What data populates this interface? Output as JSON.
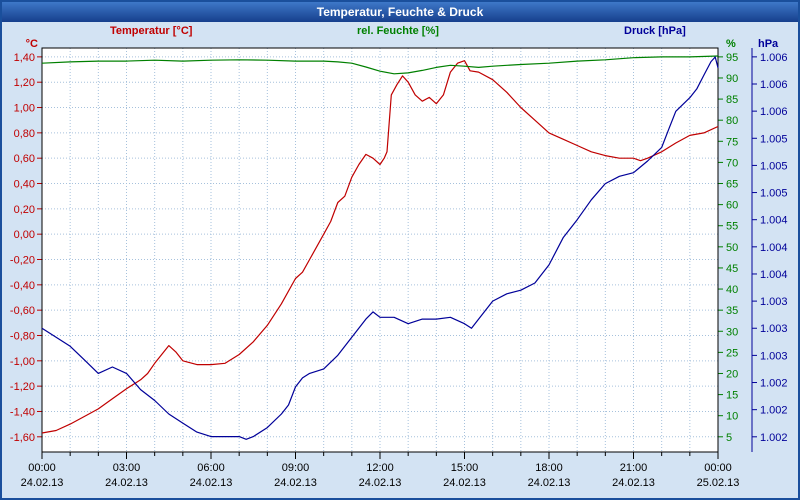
{
  "window": {
    "title": "Temperatur, Feuchte & Druck"
  },
  "legend": {
    "temperature": "Temperatur [°C]",
    "humidity": "rel. Feuchte [%]",
    "pressure": "Druck [hPa]"
  },
  "colors": {
    "temperature": "#c00000",
    "humidity": "#008000",
    "pressure": "#000099",
    "grid": "#a6c1dc",
    "frame": "#000000",
    "time_text": "#000000",
    "titlebar": "#1a4f9c"
  },
  "chart_data": {
    "type": "line",
    "title": "Temperatur, Feuchte & Druck",
    "grid": "dotted, hourly vertical and per temperature tick horizontal",
    "legend_position": "top",
    "x_axis": {
      "range_hours": [
        0,
        24
      ],
      "minor_step_hours": 1,
      "ticks": [
        {
          "hour": 0,
          "time": "00:00",
          "date": "24.02.13"
        },
        {
          "hour": 3,
          "time": "03:00",
          "date": "24.02.13"
        },
        {
          "hour": 6,
          "time": "06:00",
          "date": "24.02.13"
        },
        {
          "hour": 9,
          "time": "09:00",
          "date": "24.02.13"
        },
        {
          "hour": 12,
          "time": "12:00",
          "date": "24.02.13"
        },
        {
          "hour": 15,
          "time": "15:00",
          "date": "24.02.13"
        },
        {
          "hour": 18,
          "time": "18:00",
          "date": "24.02.13"
        },
        {
          "hour": 21,
          "time": "21:00",
          "date": "24.02.13"
        },
        {
          "hour": 24,
          "time": "00:00",
          "date": "25.02.13"
        }
      ]
    },
    "axes": {
      "temperature": {
        "unit": "°C",
        "side": "left",
        "range": [
          -1.72,
          1.47
        ],
        "ticks": [
          {
            "label": "1,40",
            "value": 1.4
          },
          {
            "label": "1,20",
            "value": 1.2
          },
          {
            "label": "1,00",
            "value": 1.0
          },
          {
            "label": "0,80",
            "value": 0.8
          },
          {
            "label": "0,60",
            "value": 0.6
          },
          {
            "label": "0,40",
            "value": 0.4
          },
          {
            "label": "0,20",
            "value": 0.2
          },
          {
            "label": "0,00",
            "value": 0.0
          },
          {
            "label": "-0,20",
            "value": -0.2
          },
          {
            "label": "-0,40",
            "value": -0.4
          },
          {
            "label": "-0,60",
            "value": -0.6
          },
          {
            "label": "-0,80",
            "value": -0.8
          },
          {
            "label": "-1,00",
            "value": -1.0
          },
          {
            "label": "-1,20",
            "value": -1.2
          },
          {
            "label": "-1,40",
            "value": -1.4
          },
          {
            "label": "-1,60",
            "value": -1.6
          }
        ]
      },
      "humidity": {
        "unit": "%",
        "side": "right-inner",
        "range": [
          1.4,
          97.1
        ],
        "ticks": [
          {
            "label": "95",
            "value": 95
          },
          {
            "label": "90",
            "value": 90
          },
          {
            "label": "85",
            "value": 85
          },
          {
            "label": "80",
            "value": 80
          },
          {
            "label": "75",
            "value": 75
          },
          {
            "label": "70",
            "value": 70
          },
          {
            "label": "65",
            "value": 65
          },
          {
            "label": "60",
            "value": 60
          },
          {
            "label": "55",
            "value": 55
          },
          {
            "label": "50",
            "value": 50
          },
          {
            "label": "45",
            "value": 45
          },
          {
            "label": "40",
            "value": 40
          },
          {
            "label": "35",
            "value": 35
          },
          {
            "label": "30",
            "value": 30
          },
          {
            "label": "25",
            "value": 25
          },
          {
            "label": "20",
            "value": 20
          },
          {
            "label": "15",
            "value": 15
          },
          {
            "label": "10",
            "value": 10
          },
          {
            "label": "5",
            "value": 5
          }
        ]
      },
      "pressure": {
        "unit": "hPa",
        "side": "right-outer",
        "range": [
          1002.03,
          1006.5
        ],
        "tick_labels": [
          "1.006",
          "1.006",
          "1.006",
          "1.005",
          "1.005",
          "1.005",
          "1.004",
          "1.004",
          "1.004",
          "1.003",
          "1.003",
          "1.003",
          "1.002",
          "1.002",
          "1.002"
        ]
      }
    },
    "series": [
      {
        "name": "Temperatur",
        "unit": "°C",
        "axis": "temperature",
        "color": "#c00000",
        "points": [
          [
            0,
            -1.57
          ],
          [
            0.5,
            -1.55
          ],
          [
            1,
            -1.5
          ],
          [
            1.5,
            -1.44
          ],
          [
            2,
            -1.38
          ],
          [
            2.5,
            -1.3
          ],
          [
            3,
            -1.22
          ],
          [
            3.5,
            -1.15
          ],
          [
            3.75,
            -1.1
          ],
          [
            4,
            -1.02
          ],
          [
            4.25,
            -0.95
          ],
          [
            4.5,
            -0.88
          ],
          [
            4.75,
            -0.93
          ],
          [
            5,
            -1.0
          ],
          [
            5.5,
            -1.03
          ],
          [
            6,
            -1.03
          ],
          [
            6.5,
            -1.02
          ],
          [
            7,
            -0.95
          ],
          [
            7.5,
            -0.85
          ],
          [
            8,
            -0.72
          ],
          [
            8.5,
            -0.55
          ],
          [
            9,
            -0.35
          ],
          [
            9.25,
            -0.3
          ],
          [
            9.5,
            -0.2
          ],
          [
            10,
            0.0
          ],
          [
            10.25,
            0.1
          ],
          [
            10.5,
            0.25
          ],
          [
            10.75,
            0.3
          ],
          [
            11,
            0.45
          ],
          [
            11.25,
            0.55
          ],
          [
            11.5,
            0.63
          ],
          [
            11.75,
            0.6
          ],
          [
            12,
            0.55
          ],
          [
            12.15,
            0.6
          ],
          [
            12.25,
            0.65
          ],
          [
            12.4,
            1.1
          ],
          [
            12.6,
            1.18
          ],
          [
            12.8,
            1.25
          ],
          [
            13,
            1.2
          ],
          [
            13.25,
            1.1
          ],
          [
            13.5,
            1.05
          ],
          [
            13.75,
            1.08
          ],
          [
            14,
            1.03
          ],
          [
            14.25,
            1.1
          ],
          [
            14.5,
            1.28
          ],
          [
            14.75,
            1.35
          ],
          [
            15,
            1.37
          ],
          [
            15.2,
            1.29
          ],
          [
            15.5,
            1.28
          ],
          [
            16,
            1.22
          ],
          [
            16.5,
            1.12
          ],
          [
            17,
            1.0
          ],
          [
            17.5,
            0.9
          ],
          [
            18,
            0.8
          ],
          [
            18.5,
            0.75
          ],
          [
            19,
            0.7
          ],
          [
            19.5,
            0.65
          ],
          [
            20,
            0.62
          ],
          [
            20.5,
            0.6
          ],
          [
            21,
            0.6
          ],
          [
            21.25,
            0.58
          ],
          [
            21.5,
            0.6
          ],
          [
            22,
            0.65
          ],
          [
            22.5,
            0.72
          ],
          [
            23,
            0.78
          ],
          [
            23.5,
            0.8
          ],
          [
            24,
            0.85
          ]
        ]
      },
      {
        "name": "rel. Feuchte",
        "unit": "%",
        "axis": "humidity",
        "color": "#008000",
        "points": [
          [
            0,
            93.5
          ],
          [
            1,
            93.8
          ],
          [
            2,
            94.0
          ],
          [
            3,
            94.0
          ],
          [
            4,
            94.2
          ],
          [
            5,
            94.0
          ],
          [
            6,
            94.2
          ],
          [
            7,
            94.3
          ],
          [
            8,
            94.2
          ],
          [
            9,
            94.0
          ],
          [
            10,
            94.0
          ],
          [
            10.5,
            93.8
          ],
          [
            11,
            93.5
          ],
          [
            11.5,
            92.6
          ],
          [
            12,
            91.6
          ],
          [
            12.5,
            91.0
          ],
          [
            13,
            91.2
          ],
          [
            13.5,
            91.8
          ],
          [
            14,
            92.5
          ],
          [
            14.5,
            93.0
          ],
          [
            15,
            92.8
          ],
          [
            15.5,
            92.5
          ],
          [
            16,
            92.8
          ],
          [
            16.5,
            93.0
          ],
          [
            17,
            93.2
          ],
          [
            18,
            93.5
          ],
          [
            19,
            94.0
          ],
          [
            20,
            94.3
          ],
          [
            21,
            94.8
          ],
          [
            22,
            95.0
          ],
          [
            23,
            95.0
          ],
          [
            24,
            95.2
          ]
        ]
      },
      {
        "name": "Druck",
        "unit": "hPa",
        "axis": "pressure",
        "color": "#000099",
        "points": [
          [
            0,
            1003.4
          ],
          [
            0.5,
            1003.3
          ],
          [
            1,
            1003.2
          ],
          [
            1.5,
            1003.05
          ],
          [
            2,
            1002.9
          ],
          [
            2.5,
            1002.97
          ],
          [
            3,
            1002.9
          ],
          [
            3.5,
            1002.72
          ],
          [
            4,
            1002.6
          ],
          [
            4.5,
            1002.45
          ],
          [
            5,
            1002.35
          ],
          [
            5.5,
            1002.25
          ],
          [
            6,
            1002.2
          ],
          [
            6.5,
            1002.2
          ],
          [
            7,
            1002.2
          ],
          [
            7.25,
            1002.17
          ],
          [
            7.5,
            1002.2
          ],
          [
            8,
            1002.3
          ],
          [
            8.5,
            1002.45
          ],
          [
            8.75,
            1002.55
          ],
          [
            9,
            1002.75
          ],
          [
            9.25,
            1002.85
          ],
          [
            9.5,
            1002.9
          ],
          [
            10,
            1002.95
          ],
          [
            10.5,
            1003.1
          ],
          [
            11,
            1003.3
          ],
          [
            11.5,
            1003.5
          ],
          [
            11.75,
            1003.58
          ],
          [
            12,
            1003.52
          ],
          [
            12.5,
            1003.52
          ],
          [
            13,
            1003.45
          ],
          [
            13.5,
            1003.5
          ],
          [
            14,
            1003.5
          ],
          [
            14.5,
            1003.52
          ],
          [
            15,
            1003.45
          ],
          [
            15.25,
            1003.4
          ],
          [
            15.5,
            1003.5
          ],
          [
            16,
            1003.7
          ],
          [
            16.5,
            1003.78
          ],
          [
            17,
            1003.82
          ],
          [
            17.5,
            1003.9
          ],
          [
            18,
            1004.1
          ],
          [
            18.5,
            1004.4
          ],
          [
            19,
            1004.6
          ],
          [
            19.5,
            1004.82
          ],
          [
            20,
            1005.0
          ],
          [
            20.5,
            1005.08
          ],
          [
            21,
            1005.12
          ],
          [
            21.5,
            1005.25
          ],
          [
            22,
            1005.4
          ],
          [
            22.25,
            1005.6
          ],
          [
            22.5,
            1005.8
          ],
          [
            23,
            1005.95
          ],
          [
            23.25,
            1006.05
          ],
          [
            23.5,
            1006.2
          ],
          [
            23.75,
            1006.35
          ],
          [
            23.9,
            1006.4
          ],
          [
            24,
            1006.28
          ]
        ]
      }
    ]
  }
}
